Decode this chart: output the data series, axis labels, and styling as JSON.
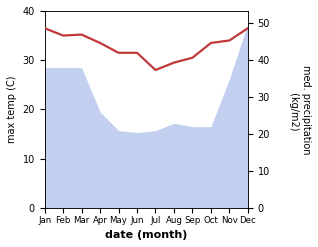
{
  "months": [
    "Jan",
    "Feb",
    "Mar",
    "Apr",
    "May",
    "Jun",
    "Jul",
    "Aug",
    "Sep",
    "Oct",
    "Nov",
    "Dec"
  ],
  "x": [
    0,
    1,
    2,
    3,
    4,
    5,
    6,
    7,
    8,
    9,
    10,
    11
  ],
  "temperature": [
    36.5,
    35.0,
    35.2,
    33.5,
    31.5,
    31.5,
    28.0,
    29.5,
    30.5,
    33.5,
    34.0,
    36.5
  ],
  "precipitation": [
    285,
    285,
    285,
    195,
    157,
    153,
    157,
    172,
    165,
    165,
    262,
    375
  ],
  "temp_ylim": [
    0,
    40
  ],
  "precip_ylim": [
    0,
    400
  ],
  "precip_right_ticks": [
    0,
    10,
    20,
    30,
    40,
    50
  ],
  "precip_right_tick_vals": [
    0,
    75,
    150,
    225,
    300,
    375
  ],
  "area_color": "#afc0ea",
  "area_alpha": 0.75,
  "line_color": "#c0393a",
  "line_width": 1.6,
  "ylabel_left": "max temp (C)",
  "ylabel_right": "med. precipitation\n (kg/m2)",
  "xlabel": "date (month)",
  "left_ticks": [
    0,
    10,
    20,
    30,
    40
  ],
  "bg_color": "#ffffff"
}
